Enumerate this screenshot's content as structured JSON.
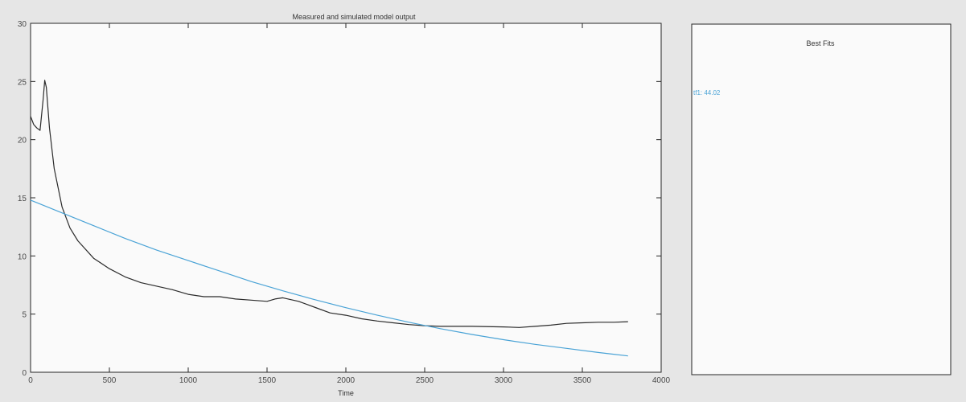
{
  "chart_data": {
    "type": "line",
    "title": "Measured and simulated model output",
    "xlabel": "Time",
    "ylabel": "",
    "xlim": [
      0,
      4000
    ],
    "ylim": [
      0,
      30
    ],
    "xticks": [
      0,
      500,
      1000,
      1500,
      2000,
      2500,
      3000,
      3500,
      4000
    ],
    "yticks": [
      0,
      5,
      10,
      15,
      20,
      25,
      30
    ],
    "grid": false,
    "series": [
      {
        "color": "#2b2b2b",
        "x": [
          0,
          20,
          40,
          60,
          80,
          90,
          100,
          120,
          150,
          200,
          250,
          300,
          400,
          500,
          600,
          700,
          800,
          900,
          1000,
          1100,
          1200,
          1300,
          1400,
          1500,
          1550,
          1600,
          1700,
          1800,
          1900,
          2000,
          2100,
          2200,
          2300,
          2400,
          2500,
          2600,
          2800,
          3000,
          3100,
          3200,
          3300,
          3400,
          3500,
          3600,
          3700,
          3790
        ],
        "y": [
          22,
          21.3,
          21,
          20.8,
          23.5,
          25.1,
          24.5,
          21,
          17.5,
          14.2,
          12.4,
          11.3,
          9.8,
          8.9,
          8.2,
          7.7,
          7.4,
          7.1,
          6.7,
          6.5,
          6.5,
          6.3,
          6.2,
          6.1,
          6.3,
          6.4,
          6.1,
          5.6,
          5.1,
          4.9,
          4.6,
          4.4,
          4.25,
          4.1,
          4.0,
          3.95,
          3.95,
          3.9,
          3.85,
          3.95,
          4.05,
          4.2,
          4.25,
          4.3,
          4.3,
          4.35
        ]
      },
      {
        "color": "#4aa3d6",
        "x": [
          0,
          200,
          400,
          600,
          800,
          1000,
          1200,
          1400,
          1600,
          1800,
          2000,
          2200,
          2400,
          2600,
          2800,
          3000,
          3200,
          3400,
          3600,
          3790
        ],
        "y": [
          14.8,
          13.7,
          12.6,
          11.5,
          10.5,
          9.6,
          8.7,
          7.8,
          7.0,
          6.25,
          5.55,
          4.9,
          4.3,
          3.75,
          3.25,
          2.8,
          2.4,
          2.05,
          1.7,
          1.4
        ]
      }
    ]
  },
  "fits_panel": {
    "title": "Best Fits",
    "entries": [
      {
        "text": "tf1: 44.02",
        "color": "#4aa3d6"
      }
    ]
  }
}
